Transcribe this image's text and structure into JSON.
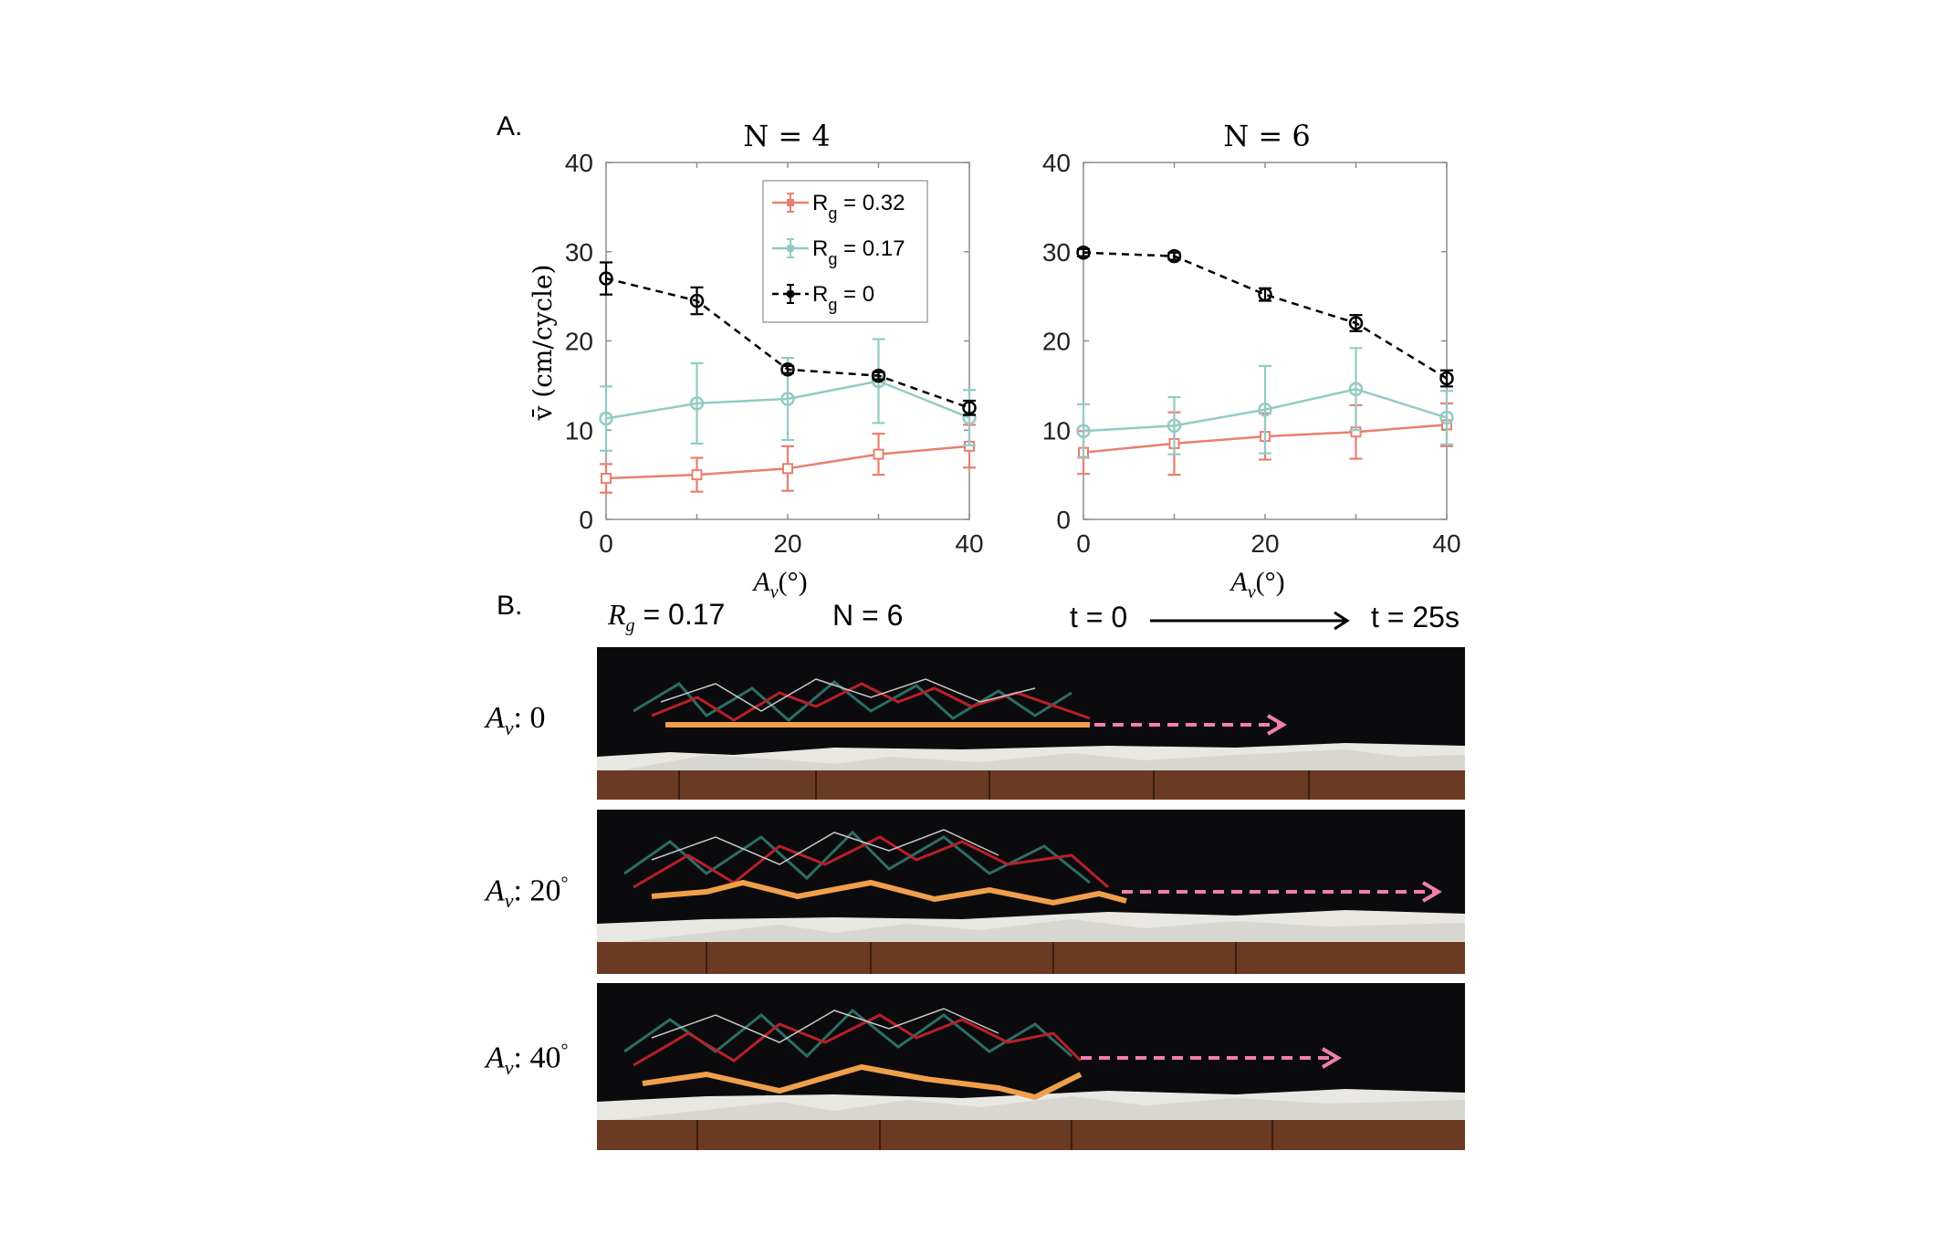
{
  "panelA": {
    "label": "A.",
    "ylabel": "v̄ (cm/cycle)",
    "xlabel": "A",
    "xlabel_sub": "v",
    "xlabel_tail": "(°)"
  },
  "chart_data": [
    {
      "type": "line",
      "title": "N = 4",
      "x": [
        0,
        10,
        20,
        30,
        40
      ],
      "xlim": [
        0,
        40
      ],
      "ylim": [
        0,
        40
      ],
      "xticks": [
        "0",
        "20",
        "40"
      ],
      "yticks": [
        "0",
        "10",
        "20",
        "30",
        "40"
      ],
      "legend_position": "top-right",
      "series": [
        {
          "name": "Rg = 0.32",
          "name_main": "R",
          "name_sub": "g",
          "name_tail": " = 0.32",
          "color": "#e8806f",
          "style": "solid",
          "marker": "square",
          "values": [
            4.6,
            5.0,
            5.7,
            7.3,
            8.2
          ],
          "err": [
            1.6,
            1.9,
            2.5,
            2.3,
            2.4
          ]
        },
        {
          "name": "Rg = 0.17",
          "name_main": "R",
          "name_sub": "g",
          "name_tail": " = 0.17",
          "color": "#93cbc4",
          "style": "solid",
          "marker": "circle",
          "values": [
            11.3,
            13.0,
            13.5,
            15.5,
            11.4
          ],
          "err": [
            3.6,
            4.5,
            4.6,
            4.7,
            3.1
          ]
        },
        {
          "name": "Rg = 0",
          "name_main": "R",
          "name_sub": "g",
          "name_tail": " = 0",
          "color": "#000000",
          "style": "dashed",
          "marker": "circle",
          "values": [
            27.0,
            24.5,
            16.8,
            16.1,
            12.5
          ],
          "err": [
            1.8,
            1.5,
            0.4,
            0.4,
            0.8
          ]
        }
      ]
    },
    {
      "type": "line",
      "title": "N = 6",
      "x": [
        0,
        10,
        20,
        30,
        40
      ],
      "xlim": [
        0,
        40
      ],
      "ylim": [
        0,
        40
      ],
      "xticks": [
        "0",
        "20",
        "40"
      ],
      "yticks": [
        "0",
        "10",
        "20",
        "30",
        "40"
      ],
      "series": [
        {
          "name": "Rg = 0.32",
          "color": "#e8806f",
          "style": "solid",
          "marker": "square",
          "values": [
            7.5,
            8.5,
            9.3,
            9.8,
            10.6
          ],
          "err": [
            2.4,
            3.5,
            2.6,
            3.0,
            2.4
          ]
        },
        {
          "name": "Rg = 0.17",
          "color": "#93cbc4",
          "style": "solid",
          "marker": "circle",
          "values": [
            9.9,
            10.5,
            12.3,
            14.6,
            11.4
          ],
          "err": [
            3.0,
            3.2,
            4.9,
            4.6,
            3.0
          ]
        },
        {
          "name": "Rg = 0",
          "color": "#000000",
          "style": "dashed",
          "marker": "circle",
          "values": [
            29.9,
            29.5,
            25.2,
            22.0,
            15.8
          ],
          "err": [
            0.4,
            0.4,
            0.7,
            0.9,
            0.9
          ]
        }
      ]
    }
  ],
  "panelB": {
    "label": "B.",
    "rg_main": "R",
    "rg_sub": "g",
    "rg_tail": " = 0.17",
    "n_label": "N = 6",
    "t_start": "t = 0",
    "t_end": "t = 25s",
    "rows": [
      {
        "label_main": "A",
        "label_sub": "v",
        "label_tail": ": 0"
      },
      {
        "label_main": "A",
        "label_sub": "v",
        "label_tail": ": 20",
        "deg": "°"
      },
      {
        "label_main": "A",
        "label_sub": "v",
        "label_tail": ": 40",
        "deg": "°"
      }
    ],
    "colors": {
      "trajectory": "#f0a04a",
      "arrow": "#f07fb0"
    }
  }
}
